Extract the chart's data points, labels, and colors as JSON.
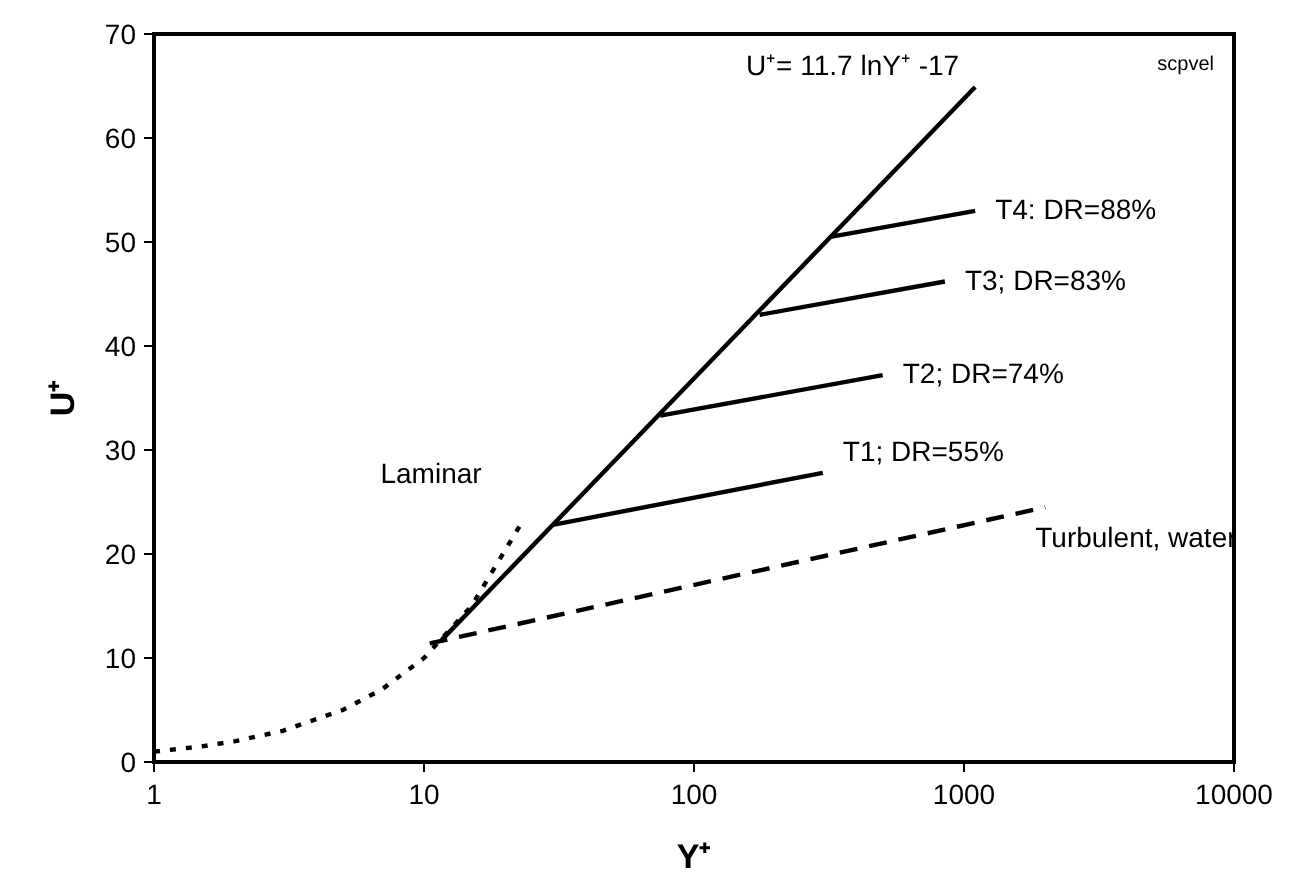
{
  "chart_data": {
    "type": "line",
    "xlabel": "Y⁺",
    "ylabel": "U⁺",
    "log": "x",
    "xlim": [
      1,
      10000
    ],
    "xticks": [
      1,
      10,
      100,
      1000,
      10000
    ],
    "ylim": [
      0,
      70
    ],
    "yticks": [
      0,
      10,
      20,
      30,
      40,
      50,
      60,
      70
    ],
    "grid": false,
    "legend": false,
    "marker": "none",
    "annotations": [
      "scpvel"
    ],
    "series": [
      {
        "name": "Laminar",
        "color": "#000000",
        "line_style": "dotted",
        "x": [
          1,
          1.5,
          2,
          3,
          5,
          7,
          10,
          15,
          23
        ],
        "values": [
          1,
          1.5,
          2,
          3,
          5,
          7,
          10,
          15,
          23
        ]
      },
      {
        "name": "U⁺= 11.7 lnY⁺ -17",
        "color": "#000000",
        "line_style": "solid",
        "x": [
          11.5,
          1100
        ],
        "values": [
          11.6,
          64.9
        ]
      },
      {
        "name": "T4: DR=88%",
        "color": "#000000",
        "line_style": "solid",
        "x": [
          320,
          1100
        ],
        "values": [
          50.5,
          53
        ]
      },
      {
        "name": "T3; DR=83%",
        "color": "#000000",
        "line_style": "solid",
        "x": [
          175,
          850
        ],
        "values": [
          43,
          46.2
        ]
      },
      {
        "name": "T2; DR=74%",
        "color": "#000000",
        "line_style": "solid",
        "x": [
          75,
          500
        ],
        "values": [
          33.3,
          37.2
        ]
      },
      {
        "name": "T1; DR=55%",
        "color": "#000000",
        "line_style": "solid",
        "x": [
          30,
          300
        ],
        "values": [
          22.8,
          27.8
        ]
      },
      {
        "name": "Turbulent, water",
        "color": "#000000",
        "line_style": "dashed",
        "x": [
          10.5,
          2000
        ],
        "values": [
          11.4,
          24.5
        ]
      }
    ]
  }
}
